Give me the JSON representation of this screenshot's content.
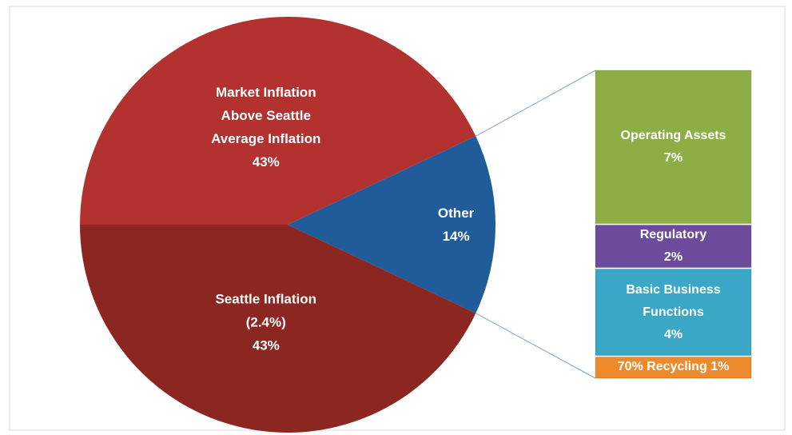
{
  "chart_data": {
    "type": "bar-of-pie",
    "categories": [
      "Market Inflation Above Seattle Average Inflation",
      "Other",
      "Seattle Inflation (2.4%)"
    ],
    "values": [
      43,
      14,
      43
    ],
    "value_labels": [
      "43%",
      "14%",
      "43%"
    ],
    "colors": [
      "#b3312f",
      "#1f5c99",
      "#8c2621"
    ],
    "breakdown": {
      "categories": [
        "Operating Assets",
        "Regulatory",
        "Basic Business Functions",
        "70% Recycling"
      ],
      "values": [
        7,
        2,
        4,
        1
      ],
      "value_labels": [
        "7%",
        "2%",
        "4%",
        "1%"
      ],
      "colors": [
        "#8cae45",
        "#6c4a9c",
        "#3aa7c7",
        "#ee8a2b"
      ]
    }
  }
}
